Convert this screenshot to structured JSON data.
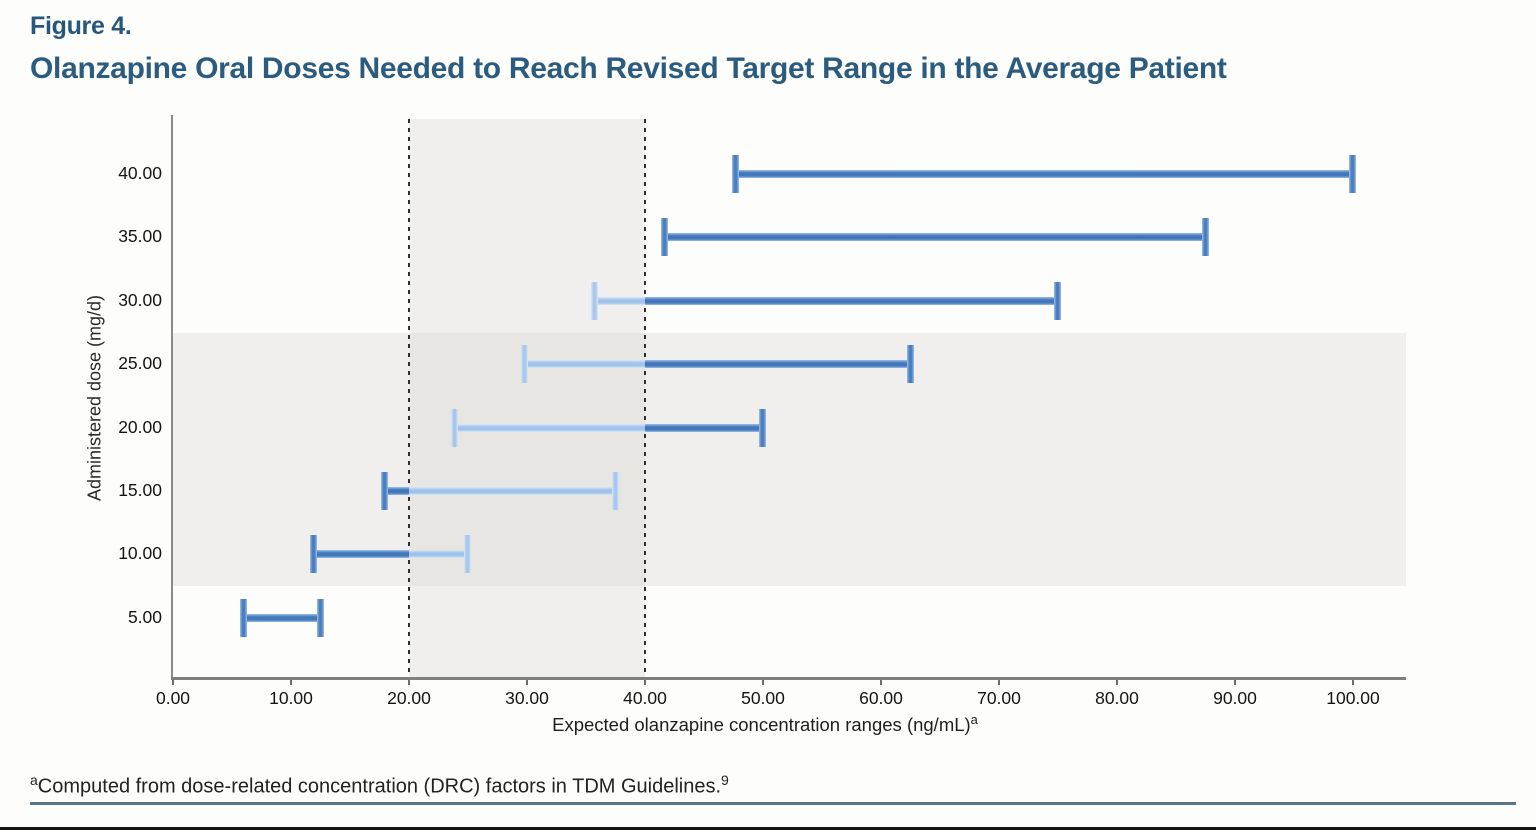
{
  "figure": {
    "label": "Figure 4.",
    "title": "Olanzapine Oral Doses Needed to Reach Revised Target Range in the Average Patient"
  },
  "chart_data": {
    "type": "range-bar",
    "title": "Olanzapine Oral Doses Needed to Reach Revised Target Range in the Average Patient",
    "xlabel": "Expected olanzapine concentration ranges (ng/mL)",
    "xlabel_superscript": "a",
    "ylabel": "Administered dose (mg/d)",
    "x_ticks": [
      "0.00",
      "10.00",
      "20.00",
      "30.00",
      "40.00",
      "50.00",
      "60.00",
      "70.00",
      "80.00",
      "90.00",
      "100.00"
    ],
    "x_tick_values": [
      0,
      10,
      20,
      30,
      40,
      50,
      60,
      70,
      80,
      90,
      100
    ],
    "xlim": [
      0,
      104.5
    ],
    "target_range_ngml": [
      20,
      40
    ],
    "highlight_dose_band": {
      "doses": [
        10,
        25
      ]
    },
    "grid": false,
    "legend": false,
    "rows": [
      {
        "label": "40.00",
        "dose": 40,
        "low": 47.6,
        "high": 100
      },
      {
        "label": "35.00",
        "dose": 35,
        "low": 41.65,
        "high": 87.5
      },
      {
        "label": "30.00",
        "dose": 30,
        "low": 35.7,
        "high": 75
      },
      {
        "label": "25.00",
        "dose": 25,
        "low": 29.75,
        "high": 62.5
      },
      {
        "label": "20.00",
        "dose": 20,
        "low": 23.8,
        "high": 50
      },
      {
        "label": "15.00",
        "dose": 15,
        "low": 17.85,
        "high": 37.5
      },
      {
        "label": "10.00",
        "dose": 10,
        "low": 11.9,
        "high": 25
      },
      {
        "label": "5.00",
        "dose": 5,
        "low": 5.95,
        "high": 12.5
      }
    ],
    "colors": {
      "bar_out_of_range": "#4a7dbe",
      "bar_in_range": "#a7c7ec",
      "title_blue": "#2b5c80",
      "band_gray": "#f1efed"
    }
  },
  "footnote": {
    "marker": "a",
    "text": "Computed from dose-related concentration (DRC) factors in TDM Guidelines.",
    "reference": "9"
  }
}
